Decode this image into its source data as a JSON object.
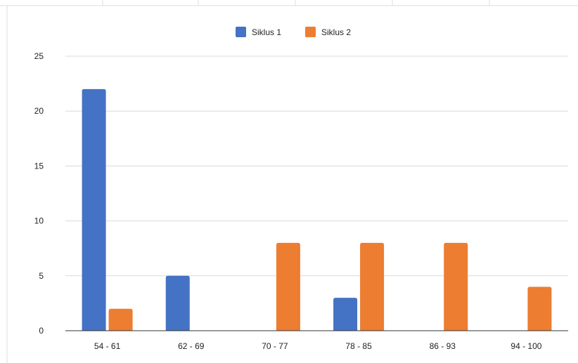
{
  "chart_data": {
    "type": "bar",
    "categories": [
      "54 - 61",
      "62 - 69",
      "70 - 77",
      "78 - 85",
      "86 - 93",
      "94 - 100"
    ],
    "series": [
      {
        "name": "Siklus 1",
        "values": [
          22,
          5,
          0,
          3,
          0,
          0
        ],
        "color": "#4472C4"
      },
      {
        "name": "Siklus 2",
        "values": [
          2,
          0,
          8,
          8,
          8,
          4
        ],
        "color": "#ED7D31"
      }
    ],
    "ylim": [
      0,
      25
    ],
    "yticks": [
      0,
      5,
      10,
      15,
      20,
      25
    ],
    "grid": true,
    "legend_position": "top",
    "xlabel": "",
    "ylabel": "",
    "title": ""
  }
}
